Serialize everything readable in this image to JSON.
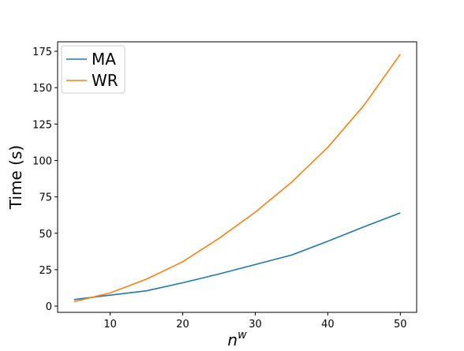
{
  "chart_data": {
    "type": "line",
    "title": "",
    "xlabel": "n",
    "xlabel_superscript": "w",
    "ylabel": "Time (s)",
    "xlim": [
      2.75,
      52.25
    ],
    "ylim": [
      -4.3,
      181.5
    ],
    "xticks": [
      10,
      20,
      30,
      40,
      50
    ],
    "yticks": [
      0,
      25,
      50,
      75,
      100,
      125,
      150,
      175
    ],
    "grid": false,
    "legend_position": "top-left",
    "series": [
      {
        "name": "MA",
        "color": "#1f77b4",
        "x": [
          5,
          10,
          15,
          20,
          25,
          30,
          35,
          40,
          45,
          50
        ],
        "y": [
          4.5,
          7.5,
          10.5,
          16,
          22,
          28.5,
          35,
          44.5,
          54.5,
          64
        ]
      },
      {
        "name": "WR",
        "color": "#ff7f0e",
        "x": [
          5,
          10,
          15,
          20,
          25,
          30,
          35,
          40,
          45,
          50
        ],
        "y": [
          3,
          9,
          18.5,
          30.5,
          46.5,
          64.5,
          85,
          109,
          138,
          173
        ]
      }
    ]
  }
}
